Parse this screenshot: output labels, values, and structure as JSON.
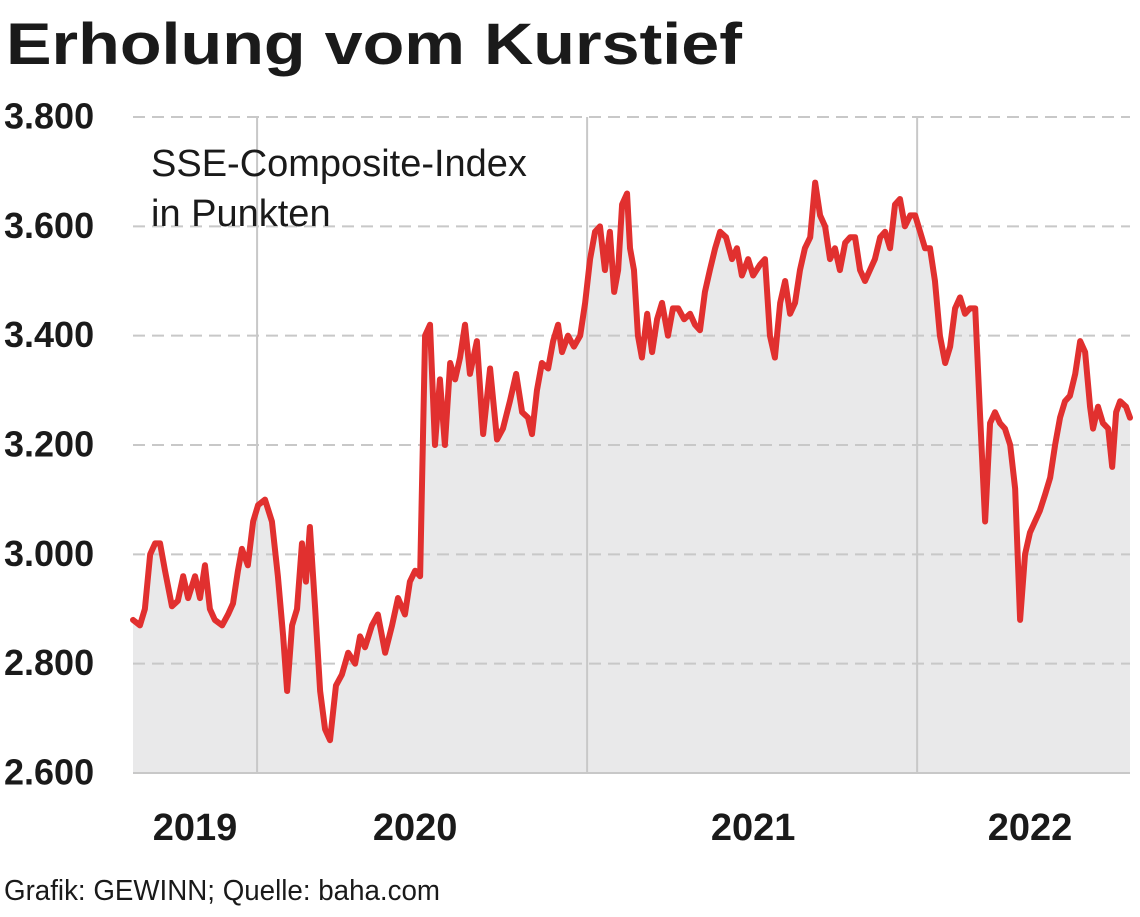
{
  "chart_data": {
    "type": "line",
    "title": "Erholung vom Kurstief",
    "annotation": [
      "SSE-Composite-Index",
      "in Punkten"
    ],
    "source": "Grafik: GEWINN; Quelle: baha.com",
    "color": "#e1302f",
    "fill_color": "#e9e9ea",
    "grid": true,
    "xlim": [
      2019.624,
      2022.645
    ],
    "xticks": [
      {
        "value": 2019.812,
        "label": "2019"
      },
      {
        "value": 2020.479,
        "label": "2020"
      },
      {
        "value": 2021.503,
        "label": "2021"
      },
      {
        "value": 2022.342,
        "label": "2022"
      }
    ],
    "xgrid": [
      2020,
      2021,
      2022
    ],
    "ylim": [
      2600,
      3800
    ],
    "yticks": [
      {
        "value": 2600,
        "label": "2.600"
      },
      {
        "value": 2800,
        "label": "2.800"
      },
      {
        "value": 3000,
        "label": "3.000"
      },
      {
        "value": 3200,
        "label": "3.200"
      },
      {
        "value": 3400,
        "label": "3.400"
      },
      {
        "value": 3600,
        "label": "3.600"
      },
      {
        "value": 3800,
        "label": "3.800"
      }
    ],
    "x": [
      2019.624,
      2019.645,
      2019.66,
      2019.676,
      2019.691,
      2019.706,
      2019.721,
      2019.742,
      2019.76,
      2019.776,
      2019.791,
      2019.812,
      2019.827,
      2019.842,
      2019.857,
      2019.872,
      2019.894,
      2019.912,
      2019.927,
      2019.942,
      2019.954,
      2019.972,
      2019.988,
      2020.003,
      2020.024,
      2020.045,
      2020.063,
      2020.079,
      2020.091,
      2020.106,
      2020.121,
      2020.136,
      2020.148,
      2020.16,
      2020.176,
      2020.191,
      2020.206,
      2020.221,
      2020.239,
      2020.257,
      2020.276,
      2020.297,
      2020.312,
      2020.327,
      2020.348,
      2020.366,
      2020.388,
      2020.409,
      2020.427,
      2020.448,
      2020.463,
      2020.479,
      2020.494,
      2020.509,
      2020.524,
      2020.539,
      2020.554,
      2020.569,
      2020.585,
      2020.6,
      2020.615,
      2020.63,
      2020.645,
      2020.666,
      2020.685,
      2020.706,
      2020.727,
      2020.745,
      2020.766,
      2020.785,
      2020.803,
      2020.821,
      2020.833,
      2020.848,
      2020.863,
      2020.882,
      2020.897,
      2020.912,
      2020.924,
      2020.942,
      2020.96,
      2020.979,
      2020.994,
      2021.009,
      2021.024,
      2021.039,
      2021.054,
      2021.069,
      2021.082,
      2021.094,
      2021.106,
      2021.121,
      2021.13,
      2021.142,
      2021.154,
      2021.166,
      2021.182,
      2021.197,
      2021.212,
      2021.227,
      2021.245,
      2021.26,
      2021.276,
      2021.294,
      2021.312,
      2021.327,
      2021.342,
      2021.357,
      2021.372,
      2021.388,
      2021.403,
      2021.421,
      2021.439,
      2021.454,
      2021.469,
      2021.488,
      2021.503,
      2021.524,
      2021.539,
      2021.554,
      2021.569,
      2021.585,
      2021.6,
      2021.615,
      2021.63,
      2021.645,
      2021.66,
      2021.676,
      2021.691,
      2021.706,
      2021.721,
      2021.736,
      2021.751,
      2021.766,
      2021.782,
      2021.797,
      2021.812,
      2021.827,
      2021.842,
      2021.857,
      2021.872,
      2021.888,
      2021.903,
      2021.918,
      2021.933,
      2021.948,
      2021.963,
      2021.979,
      2021.994,
      2022.009,
      2022.024,
      2022.039,
      2022.054,
      2022.069,
      2022.085,
      2022.1,
      2022.115,
      2022.13,
      2022.145,
      2022.16,
      2022.176,
      2022.191,
      2022.206,
      2022.221,
      2022.236,
      2022.251,
      2022.266,
      2022.282,
      2022.297,
      2022.312,
      2022.327,
      2022.342,
      2022.357,
      2022.372,
      2022.388,
      2022.403,
      2022.418,
      2022.433,
      2022.448,
      2022.463,
      2022.479,
      2022.494,
      2022.509,
      2022.524,
      2022.533,
      2022.548,
      2022.563,
      2022.579,
      2022.591,
      2022.603,
      2022.615,
      2022.633,
      2022.645
    ],
    "values": [
      2880,
      2870,
      2900,
      3000,
      3020,
      3020,
      2970,
      2905,
      2915,
      2960,
      2920,
      2960,
      2920,
      2980,
      2900,
      2880,
      2870,
      2890,
      2910,
      2970,
      3010,
      2980,
      3060,
      3090,
      3100,
      3060,
      2960,
      2850,
      2750,
      2870,
      2900,
      3020,
      2950,
      3050,
      2900,
      2750,
      2680,
      2660,
      2760,
      2780,
      2820,
      2800,
      2850,
      2830,
      2870,
      2890,
      2820,
      2870,
      2920,
      2890,
      2950,
      2970,
      2960,
      3400,
      3420,
      3200,
      3320,
      3200,
      3350,
      3320,
      3360,
      3420,
      3330,
      3390,
      3220,
      3340,
      3210,
      3230,
      3280,
      3330,
      3260,
      3250,
      3220,
      3300,
      3350,
      3340,
      3390,
      3420,
      3370,
      3400,
      3380,
      3400,
      3460,
      3540,
      3590,
      3600,
      3520,
      3590,
      3480,
      3520,
      3640,
      3660,
      3560,
      3520,
      3400,
      3360,
      3440,
      3370,
      3430,
      3460,
      3400,
      3450,
      3450,
      3430,
      3440,
      3420,
      3410,
      3480,
      3520,
      3560,
      3590,
      3580,
      3540,
      3560,
      3510,
      3540,
      3510,
      3530,
      3540,
      3400,
      3360,
      3460,
      3500,
      3440,
      3460,
      3520,
      3560,
      3580,
      3680,
      3620,
      3600,
      3540,
      3560,
      3520,
      3570,
      3580,
      3580,
      3520,
      3500,
      3520,
      3540,
      3580,
      3590,
      3560,
      3640,
      3650,
      3600,
      3620,
      3620,
      3590,
      3560,
      3560,
      3500,
      3400,
      3350,
      3380,
      3450,
      3470,
      3440,
      3450,
      3450,
      3250,
      3060,
      3240,
      3260,
      3240,
      3230,
      3200,
      3120,
      2880,
      3000,
      3040,
      3060,
      3080,
      3110,
      3140,
      3200,
      3250,
      3280,
      3290,
      3330,
      3390,
      3370,
      3270,
      3230,
      3270,
      3240,
      3230,
      3160,
      3260,
      3280,
      3270,
      3250
    ]
  }
}
